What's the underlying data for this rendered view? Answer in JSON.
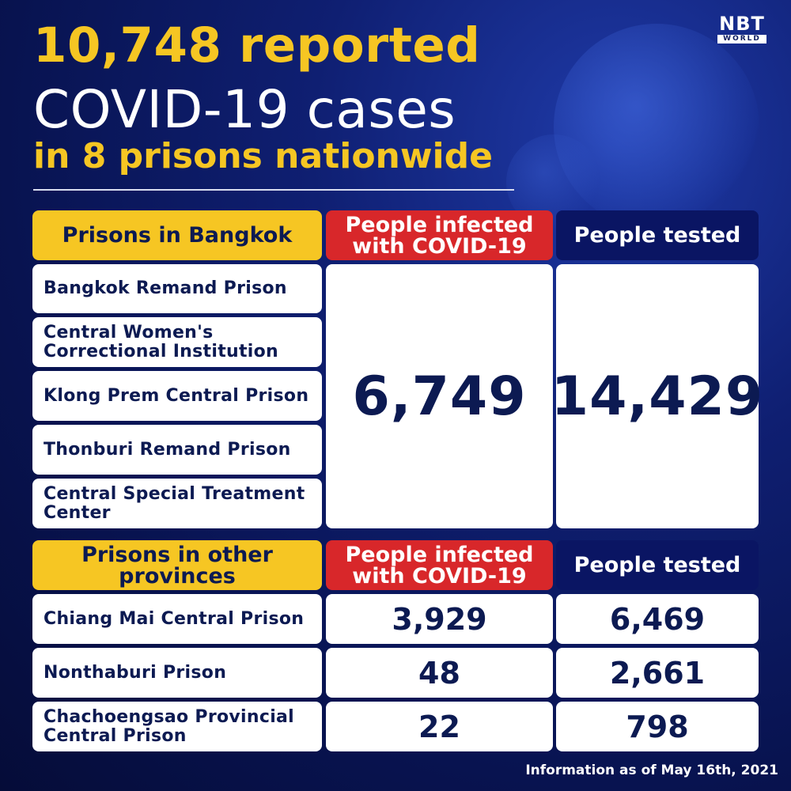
{
  "headline": {
    "line1": "10,748 reported",
    "line2": "COVID-19 cases",
    "line3": "in 8 prisons nationwide"
  },
  "logo": {
    "main": "NBT",
    "sub": "WORLD"
  },
  "bangkok": {
    "header": "Prisons in Bangkok",
    "infected_header": "People infected with COVID-19",
    "tested_header": "People tested",
    "prisons": [
      "Bangkok Remand Prison",
      "Central Women's Correctional Institution",
      "Klong Prem Central Prison",
      "Thonburi Remand Prison",
      "Central Special Treatment Center"
    ],
    "infected": "6,749",
    "tested": "14,429"
  },
  "provinces": {
    "header": "Prisons in other provinces",
    "infected_header": "People infected with COVID-19",
    "tested_header": "People tested",
    "rows": [
      {
        "name": "Chiang Mai Central Prison",
        "infected": "3,929",
        "tested": "6,469"
      },
      {
        "name": "Nonthaburi Prison",
        "infected": "48",
        "tested": "2,661"
      },
      {
        "name": "Chachoengsao Provincial Central Prison",
        "infected": "22",
        "tested": "798"
      }
    ]
  },
  "footnote": "Information as of May 16th, 2021",
  "colors": {
    "yellow": "#f6c623",
    "red": "#d8272a",
    "navy": "#0a1563",
    "background": "#0b1a60"
  }
}
